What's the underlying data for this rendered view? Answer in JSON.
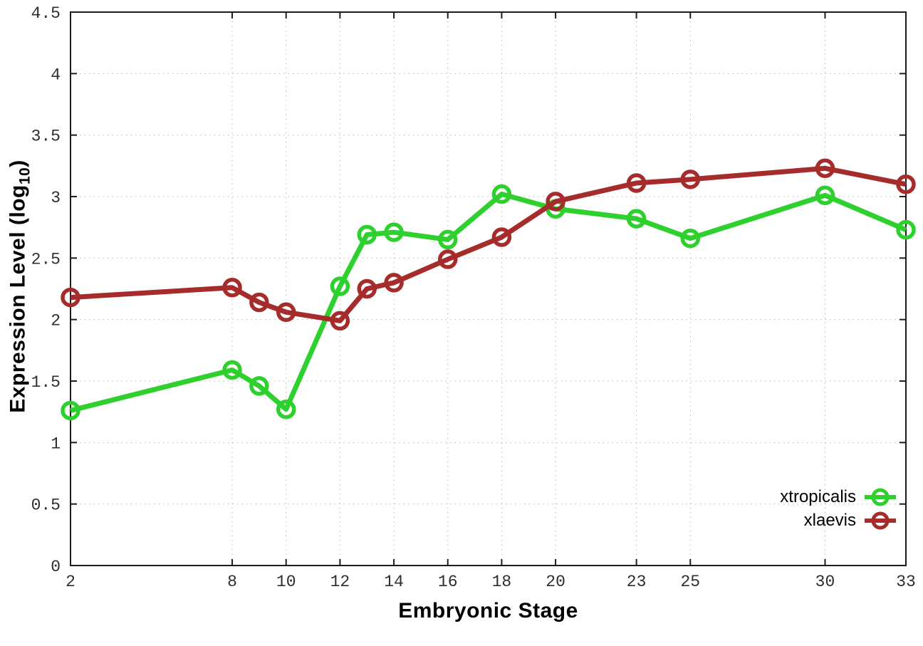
{
  "figure": {
    "background": "#ffffff",
    "border_color": "#1c1c1c",
    "grid_color": "#b8b8b8",
    "tick_label_color": "#2e2e2e"
  },
  "chart_data": {
    "type": "line",
    "title": "",
    "xlabel": "Embryonic Stage",
    "ylabel": "Expression Level (log10)",
    "ylabel_parts": {
      "main": "Expression Level (log",
      "sub": "10",
      "close": ")"
    },
    "xlim": [
      2,
      33
    ],
    "ylim": [
      0,
      4.5
    ],
    "grid": true,
    "legend_position": "bottom-right",
    "x": [
      2,
      8,
      9,
      10,
      12,
      13,
      14,
      16,
      18,
      20,
      23,
      25,
      30,
      33
    ],
    "x_ticks": [
      2,
      8,
      10,
      12,
      14,
      16,
      18,
      20,
      23,
      25,
      30,
      33
    ],
    "x_tick_labels": [
      "2",
      "8",
      "10",
      "12",
      "14",
      "16",
      "18",
      "20",
      "23",
      "25",
      "30",
      "33"
    ],
    "y_ticks": [
      0,
      0.5,
      1,
      1.5,
      2,
      2.5,
      3,
      3.5,
      4,
      4.5
    ],
    "y_tick_labels": [
      "0",
      "0.5",
      "1",
      "1.5",
      "2",
      "2.5",
      "3",
      "3.5",
      "4",
      "4.5"
    ],
    "series": [
      {
        "name": "xtropicalis",
        "color": "#2ed02e",
        "values": [
          1.26,
          1.59,
          1.46,
          1.27,
          2.27,
          2.69,
          2.71,
          2.65,
          3.02,
          2.9,
          2.82,
          2.66,
          3.01,
          2.73
        ]
      },
      {
        "name": "xlaevis",
        "color": "#a62c2c",
        "values": [
          2.18,
          2.26,
          2.14,
          2.06,
          1.99,
          2.25,
          2.3,
          2.49,
          2.67,
          2.96,
          3.11,
          3.14,
          3.23,
          3.1
        ]
      }
    ]
  }
}
